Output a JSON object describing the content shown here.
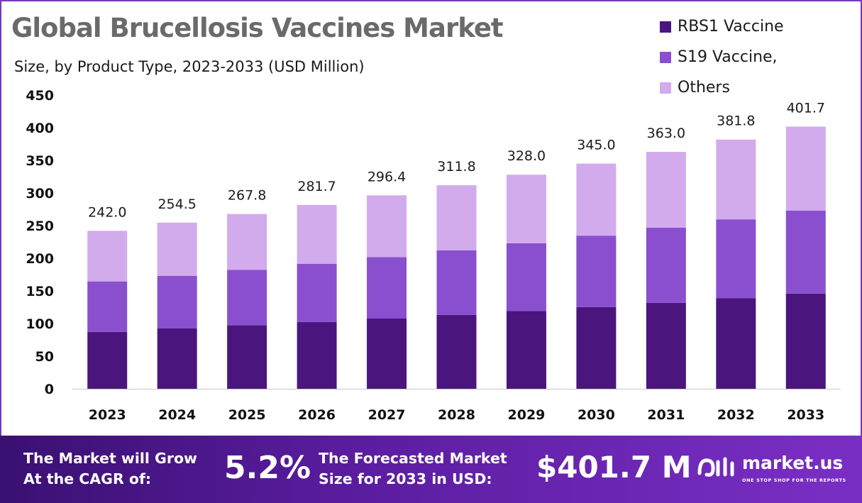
{
  "header": {
    "title": "Global Brucellosis Vaccines Market",
    "subtitle": "Size, by Product Type, 2023-2033 (USD Million)"
  },
  "legend": [
    {
      "label": "RBS1 Vaccine",
      "color": "#4a167e"
    },
    {
      "label": "S19 Vaccine,",
      "color": "#8a4fcf"
    },
    {
      "label": "Others",
      "color": "#d2abec"
    }
  ],
  "chart_data": {
    "type": "bar",
    "stacked": true,
    "title": "Global Brucellosis Vaccines Market",
    "subtitle": "Size, by Product Type, 2023-2033 (USD Million)",
    "categories": [
      "2023",
      "2024",
      "2025",
      "2026",
      "2027",
      "2028",
      "2029",
      "2030",
      "2031",
      "2032",
      "2033"
    ],
    "series": [
      {
        "name": "RBS1 Vaccine",
        "color": "#4a167e",
        "values": [
          87.1,
          92.4,
          97.2,
          102.3,
          107.6,
          113.2,
          119.1,
          125.2,
          131.8,
          138.6,
          145.8
        ]
      },
      {
        "name": "S19 Vaccine,",
        "color": "#8a4fcf",
        "values": [
          77.4,
          80.7,
          84.9,
          89.3,
          94.0,
          98.8,
          103.9,
          109.4,
          115.0,
          121.0,
          127.3
        ]
      },
      {
        "name": "Others",
        "color": "#d2abec",
        "values": [
          77.5,
          81.4,
          85.7,
          90.1,
          94.8,
          99.8,
          105.0,
          110.4,
          116.2,
          122.2,
          128.6
        ]
      }
    ],
    "totals": [
      "242.0",
      "254.5",
      "267.8",
      "281.7",
      "296.4",
      "311.8",
      "328.0",
      "345.0",
      "363.0",
      "381.8",
      "401.7"
    ],
    "yticks": [
      "0",
      "50",
      "100",
      "150",
      "200",
      "250",
      "300",
      "350",
      "400",
      "450"
    ],
    "ylim": [
      0,
      450
    ],
    "grid": false,
    "legend_position": "top-right"
  },
  "footer": {
    "cagr_label_line1": "The Market will Grow",
    "cagr_label_line2": "At the CAGR of:",
    "cagr_value": "5.2%",
    "forecast_label_line1": "The Forecasted Market",
    "forecast_label_line2": "Size for 2033 in USD:",
    "forecast_value": "$401.7 M",
    "brand_name": "market.us",
    "brand_tagline": "ONE STOP SHOP FOR THE REPORTS",
    "brand_icon": "market-us-logo-icon"
  }
}
